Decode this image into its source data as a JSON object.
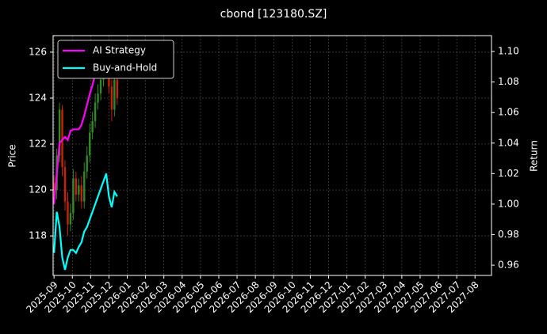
{
  "chart_data": {
    "type": "candlestick",
    "title": "cbond [123180.SZ]",
    "ylabel": "Price",
    "y2label": "Return",
    "x": [
      0,
      0.15,
      0.3,
      0.45,
      0.6,
      0.75,
      0.9,
      1.05,
      1.2,
      1.35,
      1.5,
      1.65,
      1.8,
      1.95,
      2.1,
      2.25,
      2.4,
      2.55,
      2.7,
      2.85,
      3.0,
      3.15,
      3.3,
      3.45
    ],
    "open": [
      120.3,
      120.0,
      121.5,
      123.5,
      121.0,
      119.5,
      118.5,
      119.0,
      120.5,
      119.8,
      120.2,
      119.5,
      120.8,
      121.5,
      122.5,
      123.0,
      123.8,
      124.2,
      124.8,
      125.5,
      125.8,
      124.5,
      123.5,
      124.8
    ],
    "high": [
      120.6,
      121.8,
      123.8,
      123.7,
      121.3,
      119.9,
      119.4,
      120.9,
      120.8,
      120.5,
      120.6,
      121.2,
      121.9,
      122.9,
      123.4,
      124.2,
      124.6,
      125.2,
      125.9,
      126.0,
      126.1,
      124.8,
      125.1,
      125.2
    ],
    "low": [
      119.5,
      119.6,
      121.2,
      120.6,
      119.1,
      118.0,
      118.2,
      118.7,
      119.5,
      119.5,
      119.2,
      119.2,
      120.5,
      121.2,
      122.2,
      122.7,
      123.5,
      123.9,
      124.5,
      125.2,
      124.2,
      123.0,
      123.2,
      123.7
    ],
    "close": [
      120.0,
      121.5,
      123.5,
      121.0,
      119.5,
      118.5,
      119.0,
      120.5,
      119.8,
      120.2,
      119.5,
      120.8,
      121.5,
      122.5,
      123.0,
      123.8,
      124.2,
      124.8,
      125.5,
      125.8,
      124.5,
      123.5,
      124.8,
      124.0
    ],
    "up_color": "#2e8b22",
    "down_color": "#cc2200",
    "series": [
      {
        "name": "AI Strategy",
        "color": "#ff00ff",
        "axis": "y2",
        "values": [
          1.0,
          1.02,
          1.04,
          1.042,
          1.044,
          1.042,
          1.048,
          1.049,
          1.049,
          1.049,
          1.052,
          1.058,
          1.065,
          1.072,
          1.078,
          1.085,
          1.09,
          1.095,
          1.1,
          1.102,
          1.1,
          1.1,
          1.1,
          1.1
        ]
      },
      {
        "name": "Buy-and-Hold",
        "color": "#00ffff",
        "axis": "y2",
        "values": [
          0.968,
          0.995,
          0.985,
          0.965,
          0.957,
          0.965,
          0.97,
          0.97,
          0.968,
          0.972,
          0.975,
          0.982,
          0.985,
          0.99,
          0.995,
          1.0,
          1.005,
          1.01,
          1.015,
          1.02,
          1.005,
          0.998,
          1.008,
          1.005
        ]
      }
    ],
    "xlim": [
      -0.05,
      23.9
    ],
    "xticks": [
      {
        "value": 0,
        "label": "2025-09"
      },
      {
        "value": 1,
        "label": "2025-10"
      },
      {
        "value": 2,
        "label": "2025-11"
      },
      {
        "value": 3,
        "label": "2025-12"
      },
      {
        "value": 4,
        "label": "2026-01"
      },
      {
        "value": 5,
        "label": "2026-02"
      },
      {
        "value": 6,
        "label": "2026-03"
      },
      {
        "value": 7,
        "label": "2026-04"
      },
      {
        "value": 8,
        "label": "2026-05"
      },
      {
        "value": 9,
        "label": "2026-06"
      },
      {
        "value": 10,
        "label": "2026-07"
      },
      {
        "value": 11,
        "label": "2026-08"
      },
      {
        "value": 12,
        "label": "2026-09"
      },
      {
        "value": 13,
        "label": "2026-10"
      },
      {
        "value": 14,
        "label": "2026-11"
      },
      {
        "value": 15,
        "label": "2026-12"
      },
      {
        "value": 16,
        "label": "2027-01"
      },
      {
        "value": 17,
        "label": "2027-02"
      },
      {
        "value": 18,
        "label": "2027-03"
      },
      {
        "value": 19,
        "label": "2027-04"
      },
      {
        "value": 20,
        "label": "2027-05"
      },
      {
        "value": 21,
        "label": "2027-06"
      },
      {
        "value": 22,
        "label": "2027-07"
      },
      {
        "value": 23,
        "label": "2027-08"
      }
    ],
    "ylim": [
      116.28,
      126.72
    ],
    "yticks": [
      118,
      120,
      122,
      124,
      126
    ],
    "y2lim": [
      0.9533,
      1.1104
    ],
    "y2ticks": [
      0.96,
      0.98,
      {
        "value": 1,
        "label": "1.00"
      },
      1.02,
      1.04,
      1.06,
      1.08,
      {
        "value": 1.1,
        "label": "1.10"
      }
    ],
    "grid": true,
    "legend": "upper left"
  }
}
